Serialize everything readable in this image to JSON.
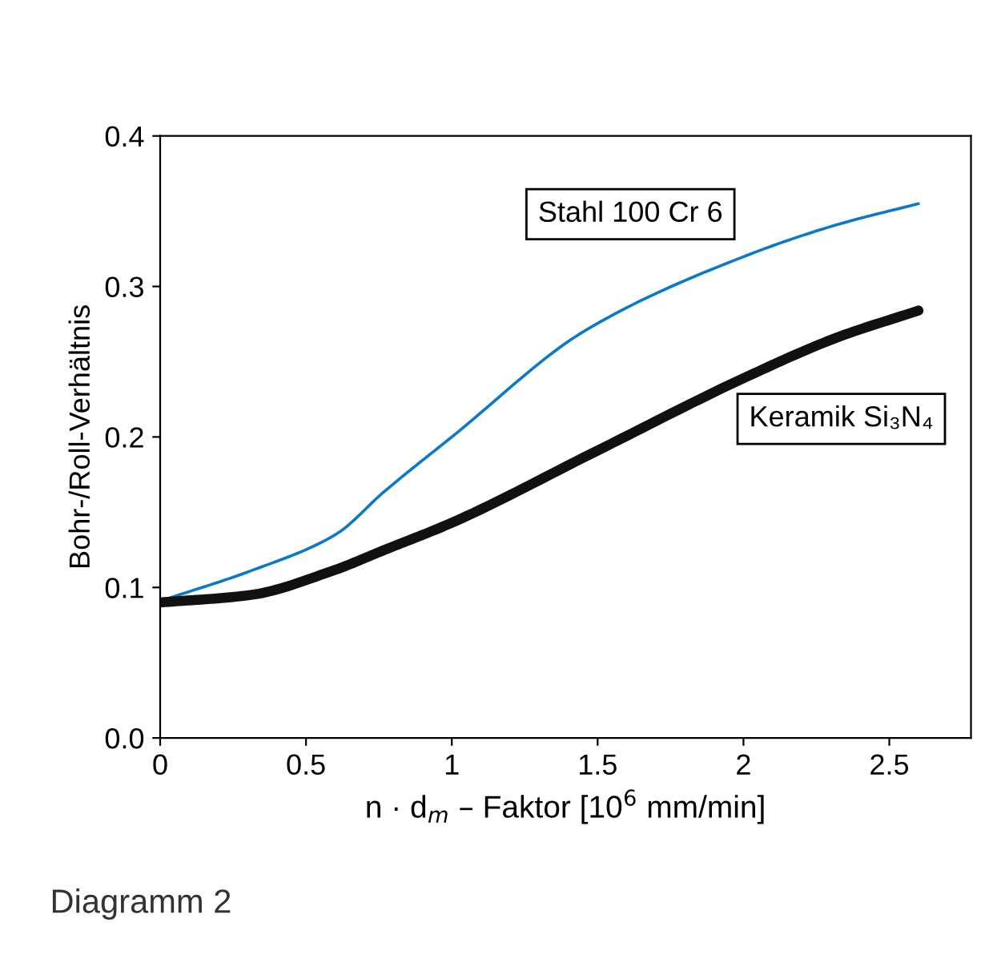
{
  "chart_data": {
    "type": "line",
    "xlabel": "n · d$_{m}$ – Faktor [10$^{6}$ mm/min]",
    "ylabel": "Bohr-/Roll-Verhältnis",
    "xlim": [
      0,
      2.78
    ],
    "ylim": [
      0,
      0.4
    ],
    "xticks": [
      0,
      0.5,
      1,
      1.5,
      2,
      2.5
    ],
    "yticks": [
      {
        "value": 0,
        "label": "0.0"
      },
      0.1,
      0.2,
      0.3,
      0.4
    ],
    "grid": false,
    "legend": false,
    "marker": "none",
    "line_style": "solid",
    "annotations": [
      "Diagramm 2"
    ],
    "series": [
      {
        "name": "Stahl 100 Cr 6",
        "color": "#0a7ac8",
        "x": [
          0,
          0.31,
          0.6,
          0.77,
          1.0,
          1.46,
          1.99,
          2.32,
          2.6
        ],
        "values": [
          0.091,
          0.111,
          0.135,
          0.164,
          0.2,
          0.271,
          0.319,
          0.341,
          0.355
        ]
      },
      {
        "name": "Keramik Si₃N₄",
        "color": "#111111",
        "x": [
          0,
          0.31,
          0.59,
          0.77,
          1.0,
          1.5,
          2.0,
          2.32,
          2.6
        ],
        "values": [
          0.09,
          0.095,
          0.111,
          0.125,
          0.143,
          0.191,
          0.239,
          0.266,
          0.284
        ]
      }
    ]
  }
}
